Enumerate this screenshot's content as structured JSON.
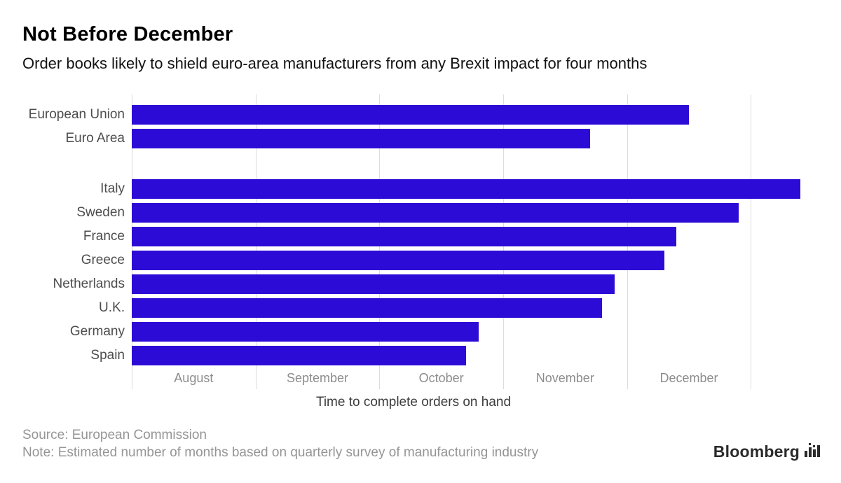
{
  "header": {
    "title": "Not Before December",
    "subtitle": "Order books likely to shield euro-area manufacturers from any Brexit impact for four months"
  },
  "chart_data": {
    "type": "bar",
    "orientation": "horizontal",
    "categories": [
      "European Union",
      "Euro Area",
      "Italy",
      "Sweden",
      "France",
      "Greece",
      "Netherlands",
      "U.K.",
      "Germany",
      "Spain"
    ],
    "values": [
      4.5,
      3.7,
      5.4,
      4.9,
      4.4,
      4.3,
      3.9,
      3.8,
      2.8,
      2.7
    ],
    "group_break_index": 2,
    "x_tick_labels": [
      "August",
      "September",
      "October",
      "November",
      "December"
    ],
    "x_gridlines": [
      0,
      1,
      2,
      3,
      4,
      5
    ],
    "xlim": [
      0,
      5.57
    ],
    "xlabel": "Time to complete orders on hand",
    "title": "Not Before December",
    "bar_color": "#2d0bd6",
    "gridline_color": "#dcdcdc",
    "grid": "vertical",
    "legend": "none"
  },
  "footer": {
    "source": "Source: European Commission",
    "note": "Note: Estimated number of months based on quarterly survey of manufacturing industry",
    "brand": "Bloomberg"
  }
}
